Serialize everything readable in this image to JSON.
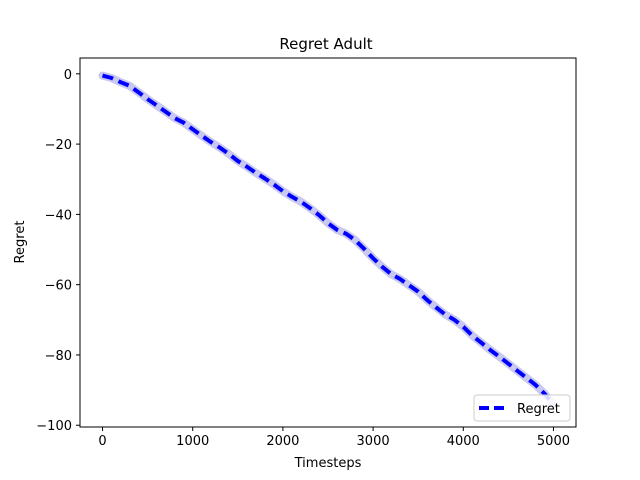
{
  "chart_data": {
    "type": "line",
    "title": "Regret Adult",
    "xlabel": "Timesteps",
    "ylabel": "Regret",
    "xlim": [
      -250,
      5250
    ],
    "ylim": [
      -100.5,
      4.5
    ],
    "xticks": [
      0,
      1000,
      2000,
      3000,
      4000,
      5000
    ],
    "yticks": [
      0,
      -20,
      -40,
      -60,
      -80,
      -100
    ],
    "xtick_labels": [
      "0",
      "1000",
      "2000",
      "3000",
      "4000",
      "5000"
    ],
    "ytick_labels": [
      "0",
      "−20",
      "−40",
      "−60",
      "−80",
      "−100"
    ],
    "grid": false,
    "legend_position": "lower right",
    "series": [
      {
        "name": "Regret",
        "color": "#0000ff",
        "band_color": "#c8c8f0",
        "line_style": "dashed",
        "x": [
          0,
          100,
          200,
          300,
          400,
          500,
          600,
          700,
          800,
          900,
          1000,
          1100,
          1200,
          1300,
          1400,
          1500,
          1600,
          1700,
          1800,
          1900,
          2000,
          2100,
          2200,
          2300,
          2400,
          2500,
          2600,
          2700,
          2800,
          2900,
          3000,
          3100,
          3200,
          3300,
          3400,
          3500,
          3600,
          3700,
          3800,
          3900,
          4000,
          4100,
          4200,
          4300,
          4400,
          4500,
          4600,
          4700,
          4800,
          4900,
          5000
        ],
        "y": [
          -0.5,
          -1.2,
          -2.4,
          -3.4,
          -5.3,
          -7.2,
          -9.0,
          -10.8,
          -12.6,
          -13.9,
          -15.8,
          -17.6,
          -19.4,
          -21.0,
          -22.8,
          -24.8,
          -26.4,
          -28.2,
          -29.8,
          -31.5,
          -33.4,
          -35.0,
          -36.4,
          -38.2,
          -40.2,
          -42.5,
          -44.4,
          -45.5,
          -47.3,
          -49.8,
          -52.5,
          -54.9,
          -57.0,
          -58.4,
          -60.2,
          -62.0,
          -64.4,
          -66.5,
          -68.5,
          -70.0,
          -72.0,
          -74.5,
          -76.5,
          -78.6,
          -80.5,
          -82.5,
          -84.5,
          -86.5,
          -88.5,
          -91.0,
          -94.0
        ]
      }
    ]
  }
}
